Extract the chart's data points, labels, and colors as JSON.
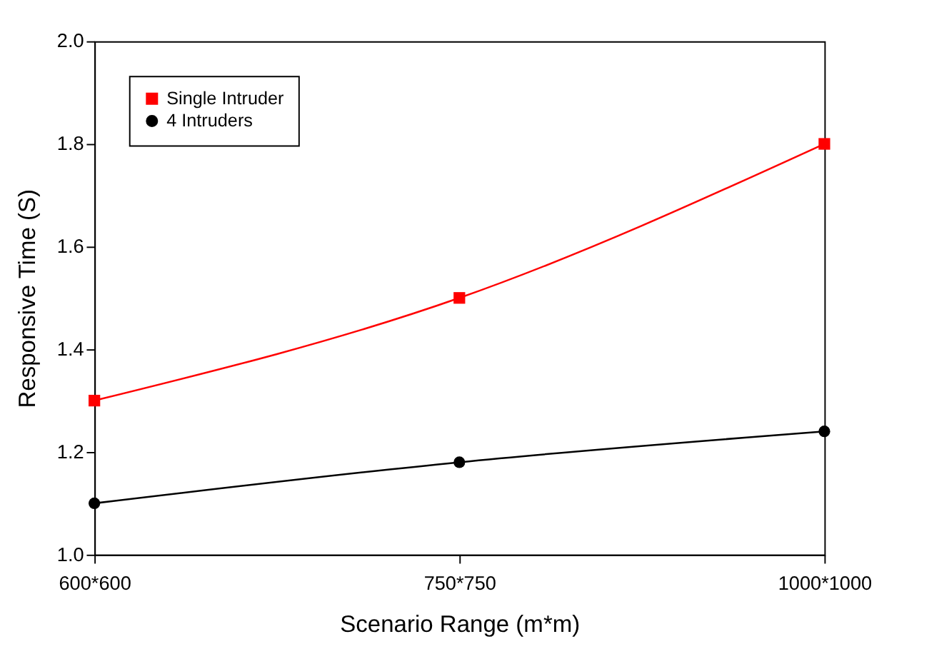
{
  "chart_data": {
    "type": "line",
    "xlabel": "Scenario Range (m*m)",
    "ylabel": "Responsive Time (S)",
    "categories": [
      "600*600",
      "750*750",
      "1000*1000"
    ],
    "series": [
      {
        "name": "Single Intruder",
        "color": "#ff0000",
        "marker": "square",
        "values": [
          1.3,
          1.5,
          1.8
        ]
      },
      {
        "name": "4 Intruders",
        "color": "#000000",
        "marker": "circle",
        "values": [
          1.1,
          1.18,
          1.24
        ]
      }
    ],
    "ylim": [
      1.0,
      2.0
    ],
    "yticks": [
      {
        "value": 1,
        "label": "1.0"
      },
      1.2,
      1.4,
      1.6,
      1.8,
      {
        "value": 2,
        "label": "2.0"
      }
    ],
    "grid": false,
    "legend": "top left",
    "line_style": "solid"
  }
}
